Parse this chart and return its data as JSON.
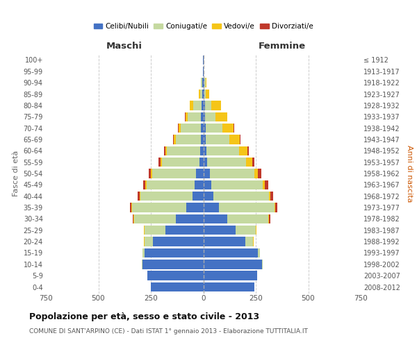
{
  "age_groups": [
    "0-4",
    "5-9",
    "10-14",
    "15-19",
    "20-24",
    "25-29",
    "30-34",
    "35-39",
    "40-44",
    "45-49",
    "50-54",
    "55-59",
    "60-64",
    "65-69",
    "70-74",
    "75-79",
    "80-84",
    "85-89",
    "90-94",
    "95-99",
    "100+"
  ],
  "birth_years": [
    "2008-2012",
    "2003-2007",
    "1998-2002",
    "1993-1997",
    "1988-1992",
    "1983-1987",
    "1978-1982",
    "1973-1977",
    "1968-1972",
    "1963-1967",
    "1958-1962",
    "1953-1957",
    "1948-1952",
    "1943-1947",
    "1938-1942",
    "1933-1937",
    "1928-1932",
    "1923-1927",
    "1918-1922",
    "1913-1917",
    "≤ 1912"
  ],
  "male_celibi": [
    250,
    265,
    290,
    280,
    240,
    180,
    130,
    80,
    50,
    40,
    35,
    18,
    15,
    12,
    12,
    10,
    8,
    5,
    5,
    2,
    2
  ],
  "male_coniugati": [
    0,
    0,
    2,
    10,
    40,
    100,
    200,
    260,
    250,
    230,
    210,
    180,
    160,
    120,
    95,
    65,
    40,
    10,
    5,
    0,
    0
  ],
  "male_vedovi": [
    0,
    0,
    0,
    0,
    2,
    2,
    2,
    2,
    3,
    5,
    5,
    5,
    5,
    8,
    10,
    10,
    15,
    5,
    2,
    0,
    0
  ],
  "male_divorziati": [
    0,
    0,
    0,
    0,
    0,
    2,
    5,
    8,
    10,
    12,
    10,
    10,
    8,
    5,
    5,
    2,
    0,
    0,
    0,
    0,
    0
  ],
  "female_celibi": [
    245,
    255,
    280,
    260,
    200,
    155,
    115,
    75,
    48,
    38,
    30,
    18,
    15,
    10,
    10,
    8,
    8,
    5,
    5,
    2,
    2
  ],
  "female_coniugati": [
    0,
    0,
    2,
    10,
    38,
    95,
    195,
    265,
    265,
    245,
    215,
    185,
    155,
    115,
    80,
    50,
    30,
    8,
    5,
    0,
    0
  ],
  "female_vedovi": [
    0,
    0,
    0,
    0,
    2,
    2,
    2,
    3,
    5,
    10,
    15,
    30,
    40,
    50,
    55,
    55,
    45,
    15,
    5,
    0,
    0
  ],
  "female_divorziati": [
    0,
    0,
    0,
    0,
    0,
    2,
    8,
    10,
    15,
    15,
    15,
    10,
    8,
    2,
    2,
    0,
    0,
    0,
    0,
    0,
    0
  ],
  "color_celibi": "#4472C4",
  "color_coniugati": "#c5d9a0",
  "color_vedovi": "#f5c518",
  "color_divorziati": "#c0392b",
  "title": "Popolazione per età, sesso e stato civile - 2013",
  "subtitle": "COMUNE DI SANT'ARPINO (CE) - Dati ISTAT 1° gennaio 2013 - Elaborazione TUTTITALIA.IT",
  "ylabel_left": "Fasce di età",
  "ylabel_right": "Anni di nascita",
  "xlabel_left": "Maschi",
  "xlabel_right": "Femmine",
  "xlim": 750,
  "bg_color": "#ffffff",
  "grid_color": "#cccccc"
}
